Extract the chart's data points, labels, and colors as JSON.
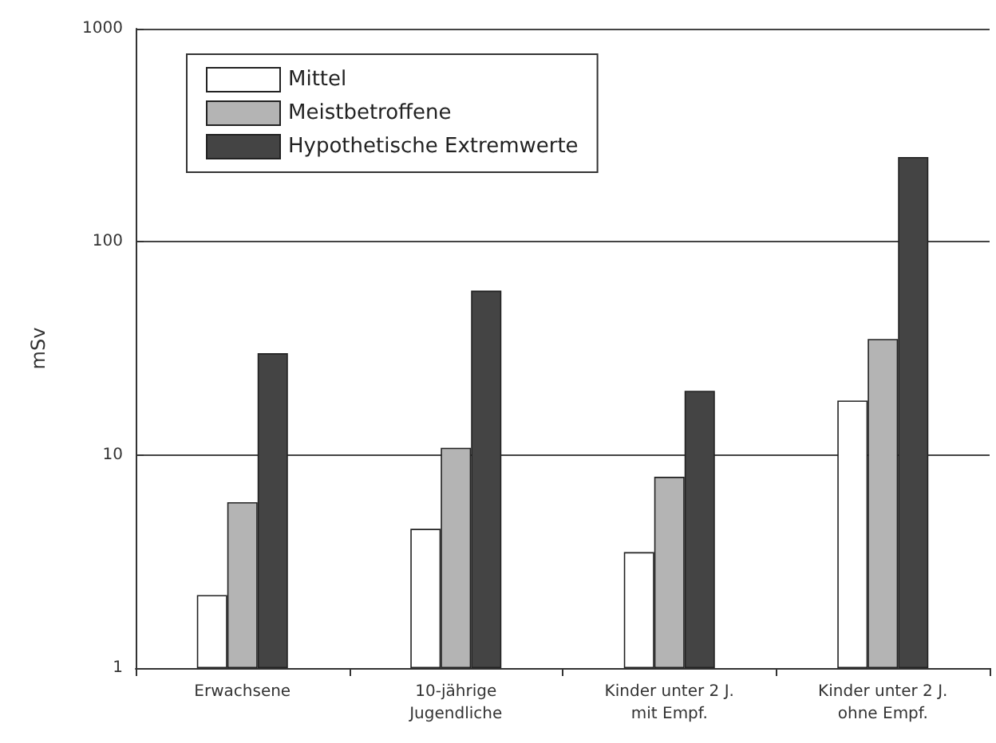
{
  "chart_data": {
    "type": "bar",
    "ylabel": "mSv",
    "categories": [
      "Erwachsene",
      "10-jährige\nJugendliche",
      "Kinder unter 2 J.\nmit Empf.",
      "Kinder unter 2 J.\nohne Empf."
    ],
    "series": [
      {
        "name": "Mittel",
        "color": "#ffffff",
        "values": [
          2.2,
          4.5,
          3.5,
          18
        ]
      },
      {
        "name": "Meistbetroffene",
        "color": "#b4b4b4",
        "values": [
          6,
          10.8,
          7.9,
          35
        ]
      },
      {
        "name": "Hypothetische Extremwerte",
        "color": "#444444",
        "values": [
          30,
          59,
          20,
          250
        ]
      }
    ],
    "log": "y",
    "ylim": [
      1,
      1000
    ],
    "yticks": [
      1,
      10,
      100,
      1000
    ],
    "grid": "y",
    "legend": "top left"
  }
}
